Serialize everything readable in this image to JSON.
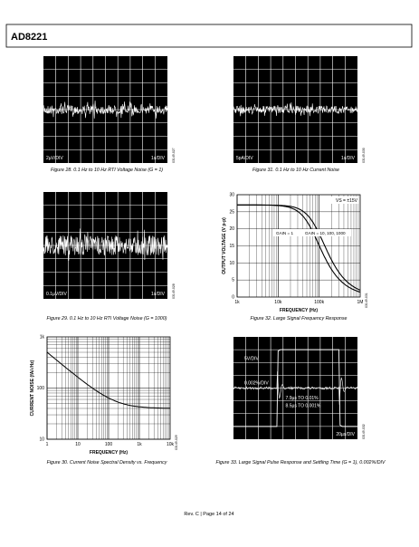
{
  "header": {
    "title": "AD8221"
  },
  "figures": [
    {
      "caption": "Figure 28. 0.1 Hz to 10 Hz RTI Voltage Noise (G = 1)",
      "labels": [
        "2µV/DIV",
        "1s/DIV"
      ],
      "code": "03149-027"
    },
    {
      "caption": "Figure 31. 0.1 Hz to 10 Hz Current Noise",
      "labels": [
        "5pA/DIV",
        "1s/DIV"
      ],
      "code": "03149-030"
    },
    {
      "caption": "Figure 29. 0.1 Hz to 10 Hz RTI Voltage Noise (G = 1000)",
      "labels": [
        "0.1µV/DIV",
        "1s/DIV"
      ],
      "code": "03149-028"
    },
    {
      "caption": "Figure 32. Large Signal Frequency Response",
      "y_label": "OUTPUT VOLTAGE (V p-p)",
      "x_label": "FREQUENCY (Hz)",
      "y_ticks": [
        "0",
        "5",
        "10",
        "15",
        "20",
        "25",
        "30"
      ],
      "x_ticks": [
        "1k",
        "10k",
        "100k",
        "1M"
      ],
      "annotations": [
        "VS = ±15V",
        "GAIN = 1",
        "GAIN = 10, 100, 1000"
      ],
      "code": "03149-031"
    },
    {
      "caption": "Figure 30. Current Noise Spectral Density vs. Frequency",
      "y_label": "CURRENT NOISE (fA/√Hz)",
      "x_label": "FREQUENCY (Hz)",
      "y_ticks": [
        "10",
        "100",
        "1k"
      ],
      "x_ticks": [
        "1",
        "10",
        "100",
        "1k",
        "10k"
      ],
      "code": "03149-029"
    },
    {
      "caption": "Figure 33. Large Signal Pulse Response and Settling Time (G = 1), 0.002%/DIV",
      "labels": [
        "5V/DIV",
        "0.002%/DIV",
        "7.9µs TO 0.01%",
        "8.5µs TO 0.001%",
        "20µs/DIV"
      ],
      "code": "03149-032"
    }
  ],
  "footer": "Rev. C | Page 14 of 24"
}
